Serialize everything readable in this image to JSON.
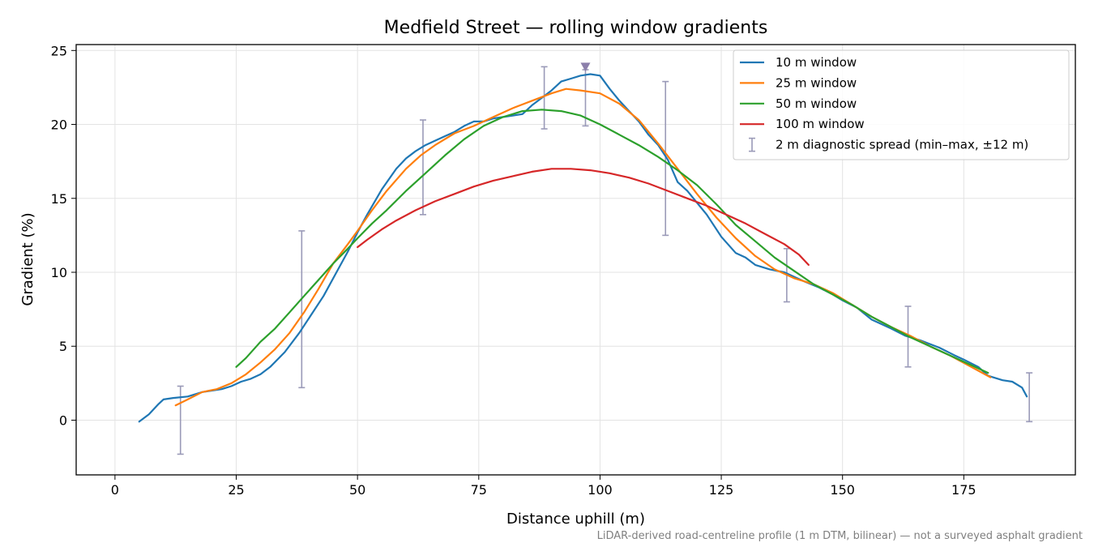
{
  "chart_data": {
    "type": "line",
    "title": "Medfield Street — rolling window gradients",
    "xlabel": "Distance uphill (m)",
    "ylabel": "Gradient (%)",
    "xlim": [
      -8,
      198
    ],
    "ylim": [
      -3.7,
      25.4
    ],
    "xticks": [
      0,
      25,
      50,
      75,
      100,
      125,
      150,
      175
    ],
    "yticks": [
      0,
      5,
      10,
      15,
      20,
      25
    ],
    "grid": true,
    "legend_position": "top-right",
    "footnote": "LiDAR-derived road-centreline profile (1 m DTM, bilinear) — not a surveyed asphalt gradient",
    "series": [
      {
        "name": "10 m window",
        "color": "#1f77b4",
        "x": [
          5,
          7,
          9,
          10,
          12,
          15,
          18,
          22,
          24,
          26,
          28,
          30,
          32,
          35,
          38,
          40,
          43,
          46,
          48,
          50,
          52,
          55,
          58,
          60,
          62,
          64,
          66,
          68,
          70,
          72,
          74,
          76,
          78,
          80,
          82,
          84,
          86,
          88,
          90,
          92,
          94,
          96,
          98,
          100,
          102,
          104,
          106,
          108,
          110,
          112,
          114,
          116,
          118,
          120,
          122,
          125,
          128,
          130,
          132,
          135,
          138,
          140,
          142,
          145,
          148,
          150,
          153,
          156,
          160,
          163,
          166,
          170,
          173,
          175,
          178,
          180,
          183,
          185,
          187,
          188
        ],
        "values": [
          -0.1,
          0.4,
          1.1,
          1.4,
          1.5,
          1.6,
          1.9,
          2.1,
          2.3,
          2.6,
          2.8,
          3.1,
          3.6,
          4.6,
          5.9,
          6.9,
          8.4,
          10.2,
          11.4,
          12.7,
          13.9,
          15.6,
          17.0,
          17.7,
          18.2,
          18.6,
          18.9,
          19.2,
          19.5,
          19.9,
          20.2,
          20.2,
          20.4,
          20.5,
          20.6,
          20.7,
          21.3,
          21.8,
          22.3,
          22.9,
          23.1,
          23.3,
          23.4,
          23.3,
          22.4,
          21.6,
          20.9,
          20.2,
          19.3,
          18.6,
          17.6,
          16.1,
          15.5,
          14.7,
          13.9,
          12.4,
          11.3,
          11.0,
          10.5,
          10.2,
          10.0,
          9.7,
          9.4,
          9.0,
          8.5,
          8.1,
          7.6,
          6.8,
          6.2,
          5.7,
          5.4,
          4.9,
          4.4,
          4.1,
          3.6,
          3.0,
          2.7,
          2.6,
          2.2,
          1.6
        ]
      },
      {
        "name": "25 m window",
        "color": "#ff7f0e",
        "x": [
          12.5,
          15,
          18,
          21,
          24,
          27,
          30,
          33,
          36,
          39,
          42,
          45,
          48,
          50,
          53,
          56,
          60,
          63,
          66,
          70,
          74,
          78,
          82,
          86,
          90,
          93,
          96,
          100,
          104,
          108,
          112,
          116,
          120,
          124,
          128,
          132,
          136,
          140,
          144,
          148,
          152,
          156,
          160,
          164,
          168,
          172,
          176,
          180.5
        ],
        "values": [
          1.0,
          1.4,
          1.9,
          2.1,
          2.5,
          3.1,
          3.9,
          4.8,
          5.9,
          7.3,
          8.9,
          10.6,
          11.9,
          12.8,
          14.2,
          15.5,
          17.0,
          17.9,
          18.6,
          19.4,
          19.9,
          20.5,
          21.1,
          21.6,
          22.1,
          22.4,
          22.3,
          22.1,
          21.4,
          20.3,
          18.7,
          17.0,
          15.3,
          13.7,
          12.3,
          11.1,
          10.2,
          9.6,
          9.2,
          8.6,
          7.8,
          7.0,
          6.3,
          5.7,
          5.0,
          4.4,
          3.7,
          2.9
        ]
      },
      {
        "name": "50 m window",
        "color": "#2ca02c",
        "x": [
          25,
          27,
          30,
          33,
          36,
          39,
          42,
          45,
          48,
          50,
          53,
          56,
          60,
          64,
          68,
          72,
          76,
          80,
          84,
          88,
          92,
          96,
          100,
          104,
          108,
          112,
          116,
          120,
          124,
          128,
          132,
          136,
          140,
          144,
          148,
          152,
          156,
          160,
          164,
          168,
          172,
          176,
          180
        ],
        "values": [
          3.6,
          4.2,
          5.3,
          6.2,
          7.3,
          8.4,
          9.5,
          10.6,
          11.6,
          12.3,
          13.3,
          14.2,
          15.5,
          16.7,
          17.9,
          19.0,
          19.9,
          20.5,
          20.9,
          21.0,
          20.9,
          20.6,
          20.0,
          19.3,
          18.6,
          17.8,
          16.9,
          15.9,
          14.6,
          13.2,
          12.1,
          11.0,
          10.1,
          9.2,
          8.5,
          7.8,
          7.0,
          6.3,
          5.6,
          5.0,
          4.4,
          3.8,
          3.2
        ]
      },
      {
        "name": "100 m window",
        "color": "#d62728",
        "x": [
          50,
          52,
          55,
          58,
          62,
          66,
          70,
          74,
          78,
          82,
          86,
          90,
          94,
          98,
          102,
          106,
          110,
          114,
          118,
          122,
          126,
          130,
          134,
          138,
          141,
          143
        ],
        "values": [
          11.7,
          12.2,
          12.9,
          13.5,
          14.2,
          14.8,
          15.3,
          15.8,
          16.2,
          16.5,
          16.8,
          17.0,
          17.0,
          16.9,
          16.7,
          16.4,
          16.0,
          15.5,
          15.0,
          14.5,
          13.9,
          13.3,
          12.6,
          11.9,
          11.2,
          10.5
        ]
      }
    ],
    "error_bars": {
      "name": "2 m diagnostic spread (min–max, ±12 m)",
      "color": "#9a9ab8",
      "x": [
        13.5,
        38.5,
        63.5,
        88.5,
        97,
        113.5,
        138.5,
        163.5,
        188.5
      ],
      "low": [
        -2.3,
        2.2,
        13.9,
        19.7,
        19.9,
        12.5,
        8.0,
        3.6,
        -0.1
      ],
      "high": [
        2.3,
        12.8,
        20.3,
        23.9,
        23.7,
        22.9,
        11.6,
        7.7,
        3.2
      ]
    },
    "peak_marker": {
      "x": 97,
      "y": 23.9,
      "color": "#8c7fab"
    }
  }
}
